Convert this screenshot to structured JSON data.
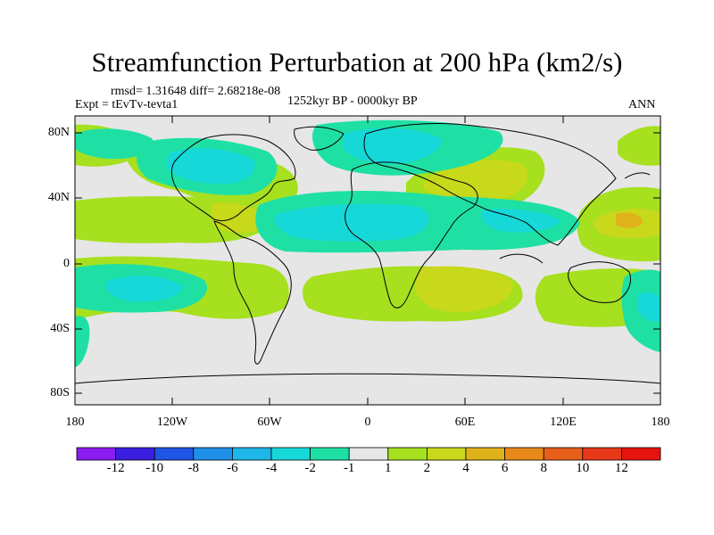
{
  "title": "Streamfunction Perturbation at 200 hPa (km2/s)",
  "stats": "rmsd= 1.31648 diff= 2.68218e-08",
  "expt": "Expt = tEvTv-tevta1",
  "period": "1252kyr BP - 0000kyr BP",
  "season": "ANN",
  "lat_labels": [
    "80N",
    "40N",
    "0",
    "40S",
    "80S"
  ],
  "lon_labels": [
    "180",
    "120W",
    "60W",
    "0",
    "60E",
    "120E",
    "180"
  ],
  "colorbar": {
    "labels": [
      "-12",
      "-10",
      "-8",
      "-6",
      "-4",
      "-2",
      "-1",
      "1",
      "2",
      "4",
      "6",
      "8",
      "10",
      "12"
    ],
    "colors": [
      "#8b1cf2",
      "#3c1ee0",
      "#1f55e6",
      "#1f8fe8",
      "#1fb6e8",
      "#17d8d8",
      "#1fe0a4",
      "#e6e6e6",
      "#a6e01f",
      "#c8d81a",
      "#e0b21a",
      "#e88a1a",
      "#e85f1a",
      "#e8381a",
      "#e6140f"
    ]
  }
}
